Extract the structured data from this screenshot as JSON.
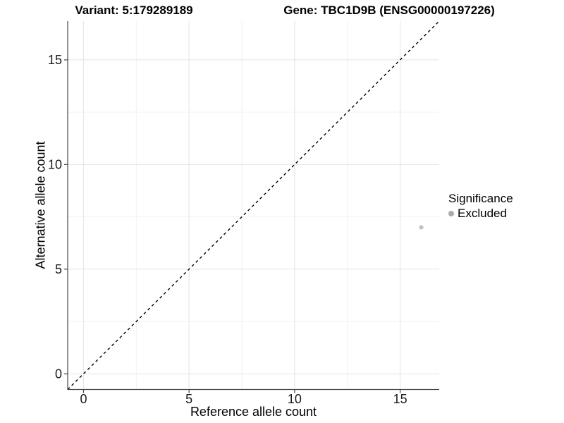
{
  "titles": {
    "left": "Variant: 5:179289189",
    "right": "Gene: TBC1D9B (ENSG00000197226)"
  },
  "chart_data": {
    "type": "scatter",
    "xlabel": "Reference allele count",
    "ylabel": "Alternative allele count",
    "xlim": [
      -0.75,
      16.85
    ],
    "ylim": [
      -0.75,
      16.85
    ],
    "xticks": [
      0,
      5,
      10,
      15
    ],
    "yticks": [
      0,
      5,
      10,
      15
    ],
    "minor_xticks": [
      2.5,
      7.5,
      12.5
    ],
    "minor_yticks": [
      2.5,
      7.5,
      12.5
    ],
    "grid": "major+minor",
    "identity_line": {
      "equation": "y = x",
      "style": "dashed",
      "color": "#000000"
    },
    "series": [
      {
        "name": "Excluded",
        "color": "#c2c2c2",
        "point_radius": 3.1,
        "points": [
          {
            "x": 16,
            "y": 7
          }
        ]
      }
    ],
    "legend": {
      "title": "Significance",
      "position": "right",
      "items": [
        {
          "label": "Excluded",
          "color": "#ababab"
        }
      ]
    }
  },
  "colors": {
    "background": "#ffffff",
    "axis_line": "#474747",
    "grid_major": "#e4e4e4",
    "grid_minor": "#f2f2f2",
    "tick_label": "#1a1a1a"
  }
}
